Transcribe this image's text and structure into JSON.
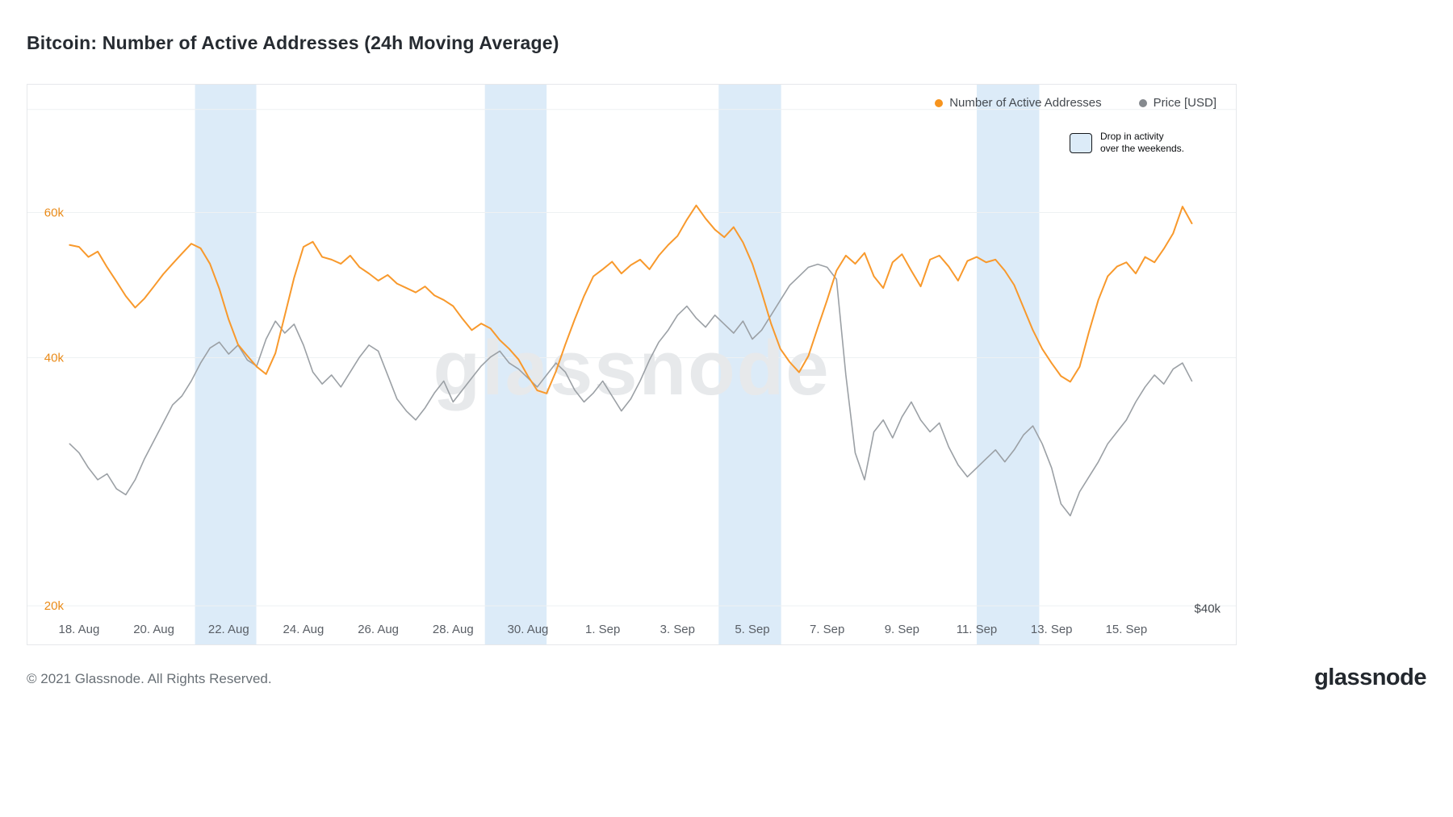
{
  "page": {
    "title": "Bitcoin: Number of Active Addresses (24h Moving Average)",
    "watermark": "glassnode",
    "footer_copyright": "© 2021 Glassnode. All Rights Reserved.",
    "brand_logo": "glassnode"
  },
  "legend": {
    "items": [
      {
        "label": "Number of Active Addresses",
        "color": "#f7941e"
      },
      {
        "label": "Price [USD]",
        "color": "#85898e"
      }
    ]
  },
  "annotation": {
    "line1": "Drop in activity",
    "line2": "over the weekends.",
    "swatch_fill": "#dcebf8",
    "swatch_border": "#15181b"
  },
  "colors": {
    "band": "#dcebf8",
    "grid": "#eef1f3",
    "axis_orange": "#ea8a17",
    "x_label": "#5a5f66",
    "right_label": "#43484e",
    "watermark": "#e7e9eb",
    "addresses_line": "#f8992c",
    "price_line": "#9ba0a5"
  },
  "chart_data": {
    "type": "line",
    "title": "Bitcoin: Number of Active Addresses (24h Moving Average)",
    "x_start": "2021-08-17T18:00Z",
    "x_step_hours": 6,
    "x_first_day_offset": -0.25,
    "x_tick_labels": [
      "18. Aug",
      "20. Aug",
      "22. Aug",
      "24. Aug",
      "26. Aug",
      "28. Aug",
      "30. Aug",
      "1. Sep",
      "3. Sep",
      "5. Sep",
      "7. Sep",
      "9. Sep",
      "11. Sep",
      "13. Sep",
      "15. Sep"
    ],
    "x_tick_day_offsets": [
      0,
      2,
      4,
      6,
      8,
      10,
      12,
      14,
      16,
      18,
      20,
      22,
      24,
      26,
      28
    ],
    "left_axis": {
      "scale": "log",
      "unit": "active addresses (thousands)",
      "ticks": [
        {
          "value": 20,
          "label": "20k"
        },
        {
          "value": 40,
          "label": "40k"
        },
        {
          "value": 60,
          "label": "60k"
        }
      ],
      "gridline_values": [
        20,
        40,
        60,
        80
      ]
    },
    "right_axis": {
      "scale": "linear",
      "unit": "price (thousand USD)",
      "tick_label": "$40k",
      "tick_value": 40,
      "min": 38.8,
      "max": 57.5
    },
    "weekend_bands_day_offsets": [
      [
        3.1,
        4.74
      ],
      [
        10.85,
        12.5
      ],
      [
        17.1,
        18.77
      ],
      [
        24.0,
        25.67
      ]
    ],
    "series": [
      {
        "name": "Number of Active Addresses",
        "axis": "left",
        "color": "#f8992c",
        "values_k": [
          54.8,
          54.5,
          53.0,
          53.8,
          51.5,
          49.5,
          47.5,
          46.0,
          47.2,
          48.8,
          50.5,
          52.0,
          53.5,
          55.0,
          54.3,
          52.0,
          48.5,
          44.5,
          41.5,
          40.2,
          39.0,
          38.2,
          40.5,
          45.0,
          50.0,
          54.5,
          55.3,
          53.0,
          52.6,
          52.0,
          53.2,
          51.5,
          50.6,
          49.6,
          50.4,
          49.2,
          48.6,
          48.0,
          48.8,
          47.6,
          47.0,
          46.2,
          44.6,
          43.2,
          44.0,
          43.4,
          42.0,
          41.0,
          39.8,
          38.0,
          36.5,
          36.2,
          38.5,
          41.5,
          44.5,
          47.5,
          50.2,
          51.2,
          52.3,
          50.6,
          51.8,
          52.6,
          51.2,
          53.2,
          54.8,
          56.2,
          58.8,
          61.2,
          59.0,
          57.2,
          56.0,
          57.6,
          55.2,
          52.0,
          48.0,
          44.0,
          41.0,
          39.5,
          38.4,
          40.2,
          43.5,
          47.0,
          51.0,
          53.2,
          52.0,
          53.6,
          50.2,
          48.6,
          52.2,
          53.4,
          51.0,
          48.8,
          52.6,
          53.2,
          51.6,
          49.6,
          52.4,
          53.0,
          52.2,
          52.6,
          51.0,
          49.0,
          46.0,
          43.2,
          41.0,
          39.4,
          38.0,
          37.4,
          39.0,
          43.0,
          47.0,
          50.2,
          51.6,
          52.2,
          50.6,
          53.0,
          52.2,
          54.2,
          56.6,
          61.0,
          58.2
        ]
      },
      {
        "name": "Price [USD]",
        "axis": "right",
        "color": "#9ba0a5",
        "values_kusd": [
          45.5,
          45.2,
          44.7,
          44.3,
          44.5,
          44.0,
          43.8,
          44.3,
          45.0,
          45.6,
          46.2,
          46.8,
          47.1,
          47.6,
          48.2,
          48.7,
          48.9,
          48.5,
          48.8,
          48.3,
          48.1,
          49.0,
          49.6,
          49.2,
          49.5,
          48.8,
          47.9,
          47.5,
          47.8,
          47.4,
          47.9,
          48.4,
          48.8,
          48.6,
          47.8,
          47.0,
          46.6,
          46.3,
          46.7,
          47.2,
          47.6,
          46.9,
          47.3,
          47.7,
          48.1,
          48.4,
          48.6,
          48.2,
          48.0,
          47.7,
          47.4,
          47.8,
          48.2,
          47.9,
          47.3,
          46.9,
          47.2,
          47.6,
          47.1,
          46.6,
          47.0,
          47.6,
          48.3,
          48.9,
          49.3,
          49.8,
          50.1,
          49.7,
          49.4,
          49.8,
          49.5,
          49.2,
          49.6,
          49.0,
          49.3,
          49.8,
          50.3,
          50.8,
          51.1,
          51.4,
          51.5,
          51.4,
          51.0,
          47.8,
          45.2,
          44.3,
          45.9,
          46.3,
          45.7,
          46.4,
          46.9,
          46.3,
          45.9,
          46.2,
          45.4,
          44.8,
          44.4,
          44.7,
          45.0,
          45.3,
          44.9,
          45.3,
          45.8,
          46.1,
          45.5,
          44.7,
          43.5,
          43.1,
          43.9,
          44.4,
          44.9,
          45.5,
          45.9,
          46.3,
          46.9,
          47.4,
          47.8,
          47.5,
          48.0,
          48.2,
          47.6
        ]
      }
    ]
  }
}
